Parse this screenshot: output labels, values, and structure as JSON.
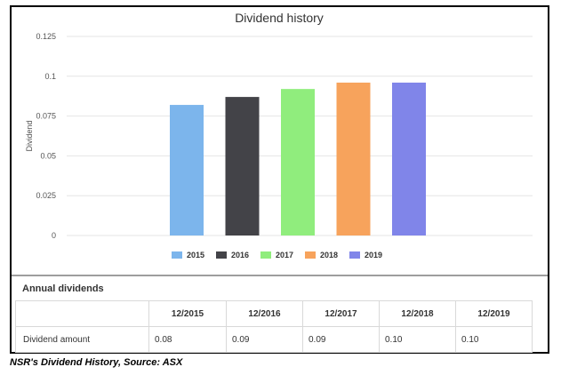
{
  "chart_data": {
    "type": "bar",
    "title": "Dividend history",
    "ylabel": "Dividend",
    "xlabel": "",
    "ylim": [
      0,
      0.125
    ],
    "yticks": [
      "0",
      "0.025",
      "0.05",
      "0.075",
      "0.1",
      "0.125"
    ],
    "grid": true,
    "legend_position": "bottom",
    "series": [
      {
        "name": "2015",
        "value": 0.082,
        "color": "#7cb5ec"
      },
      {
        "name": "2016",
        "value": 0.087,
        "color": "#434348"
      },
      {
        "name": "2017",
        "value": 0.092,
        "color": "#90ed7d"
      },
      {
        "name": "2018",
        "value": 0.096,
        "color": "#f7a35c"
      },
      {
        "name": "2019",
        "value": 0.096,
        "color": "#8085e9"
      }
    ]
  },
  "table": {
    "title": "Annual dividends",
    "columns": [
      "12/2015",
      "12/2016",
      "12/2017",
      "12/2018",
      "12/2019"
    ],
    "row_label": "Dividend amount",
    "values": [
      "0.08",
      "0.09",
      "0.09",
      "0.10",
      "0.10"
    ]
  },
  "caption": "NSR's Dividend History, Source: ASX"
}
